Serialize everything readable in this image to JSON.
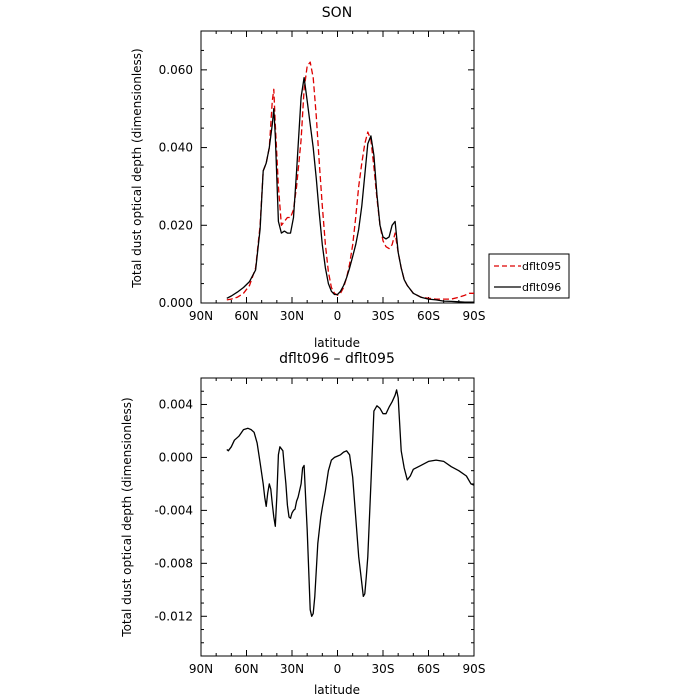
{
  "chart_data": [
    {
      "type": "line",
      "title": "SON",
      "xlabel": "latitude",
      "ylabel": "Total dust optical depth (dimensionless)",
      "xlim": [
        90,
        -90
      ],
      "ylim": [
        0.0,
        0.07
      ],
      "x_ticks": [
        90,
        60,
        30,
        0,
        -30,
        -60,
        -90
      ],
      "x_tick_labels": [
        "90N",
        "60N",
        "30N",
        "0",
        "30S",
        "60S",
        "90S"
      ],
      "y_ticks": [
        0.0,
        0.02,
        0.04,
        0.06
      ],
      "y_tick_labels": [
        "0.000",
        "0.020",
        "0.040",
        "0.060"
      ],
      "legend": "right-outside",
      "series": [
        {
          "name": "dflt095",
          "color": "#dd0000",
          "dash": "dashed",
          "x": [
            73,
            70,
            66,
            62,
            58,
            54,
            51,
            49,
            47,
            45,
            43,
            42,
            41,
            39,
            37,
            35,
            33,
            31,
            29,
            27,
            24,
            22,
            20,
            18,
            16,
            14,
            12,
            10,
            8,
            6,
            4,
            2,
            0,
            -2,
            -4,
            -6,
            -8,
            -10,
            -12,
            -14,
            -16,
            -18,
            -20,
            -22,
            -24,
            -26,
            -28,
            -30,
            -32,
            -34,
            -36,
            -38,
            -40,
            -42,
            -44,
            -46,
            -48,
            -50,
            -55,
            -60,
            -65,
            -70,
            -75,
            -80,
            -84,
            -87,
            -90
          ],
          "y": [
            0.0008,
            0.001,
            0.0015,
            0.0025,
            0.0045,
            0.009,
            0.02,
            0.034,
            0.036,
            0.04,
            0.052,
            0.055,
            0.046,
            0.03,
            0.02,
            0.021,
            0.022,
            0.022,
            0.024,
            0.03,
            0.042,
            0.055,
            0.061,
            0.062,
            0.058,
            0.048,
            0.036,
            0.025,
            0.015,
            0.008,
            0.004,
            0.0025,
            0.002,
            0.0025,
            0.004,
            0.0065,
            0.01,
            0.015,
            0.022,
            0.03,
            0.036,
            0.041,
            0.044,
            0.042,
            0.035,
            0.027,
            0.02,
            0.016,
            0.0145,
            0.014,
            0.015,
            0.018,
            0.013,
            0.009,
            0.006,
            0.0045,
            0.0035,
            0.0025,
            0.0015,
            0.0012,
            0.001,
            0.001,
            0.001,
            0.0015,
            0.002,
            0.0025,
            0.0025
          ]
        },
        {
          "name": "dflt096",
          "color": "#000000",
          "dash": "solid",
          "x": [
            73,
            70,
            66,
            62,
            58,
            54,
            51,
            49,
            47,
            45,
            43,
            42,
            41,
            39,
            37,
            35,
            33,
            31,
            29,
            27,
            24,
            22,
            20,
            18,
            16,
            14,
            12,
            10,
            8,
            6,
            4,
            2,
            0,
            -2,
            -4,
            -6,
            -8,
            -10,
            -12,
            -14,
            -16,
            -18,
            -20,
            -22,
            -24,
            -26,
            -28,
            -30,
            -32,
            -34,
            -36,
            -38,
            -40,
            -42,
            -44,
            -46,
            -48,
            -50,
            -55,
            -60,
            -65,
            -70,
            -75,
            -80,
            -84,
            -87,
            -90
          ],
          "y": [
            0.0012,
            0.0018,
            0.0028,
            0.004,
            0.0055,
            0.0085,
            0.019,
            0.034,
            0.036,
            0.04,
            0.046,
            0.05,
            0.043,
            0.021,
            0.018,
            0.0185,
            0.018,
            0.018,
            0.022,
            0.034,
            0.053,
            0.058,
            0.052,
            0.046,
            0.04,
            0.032,
            0.023,
            0.015,
            0.009,
            0.005,
            0.003,
            0.0022,
            0.0022,
            0.003,
            0.0045,
            0.0065,
            0.009,
            0.012,
            0.015,
            0.019,
            0.025,
            0.033,
            0.041,
            0.043,
            0.038,
            0.028,
            0.02,
            0.017,
            0.0165,
            0.017,
            0.02,
            0.021,
            0.013,
            0.009,
            0.006,
            0.0045,
            0.0035,
            0.0025,
            0.0015,
            0.001,
            0.0008,
            0.0005,
            0.0004,
            0.0003,
            0.0002,
            0.0002,
            0.0002
          ]
        }
      ]
    },
    {
      "type": "line",
      "title": "dflt096 – dflt095",
      "xlabel": "latitude",
      "ylabel": "Total dust optical depth (dimensionless)",
      "xlim": [
        90,
        -90
      ],
      "ylim": [
        -0.015,
        0.006
      ],
      "x_ticks": [
        90,
        60,
        30,
        0,
        -30,
        -60,
        -90
      ],
      "x_tick_labels": [
        "90N",
        "60N",
        "30N",
        "0",
        "30S",
        "60S",
        "90S"
      ],
      "y_ticks": [
        0.004,
        0.0,
        -0.004,
        -0.008,
        -0.012
      ],
      "y_tick_labels": [
        "0.004",
        "0.000",
        "-0.004",
        "-0.008",
        "-0.012"
      ],
      "series": [
        {
          "color": "#000000",
          "dash": "solid",
          "x": [
            73,
            72,
            70,
            68,
            65,
            62,
            59,
            57,
            55,
            53,
            51,
            49,
            48,
            47,
            46,
            45,
            44,
            43,
            42,
            41,
            40,
            39,
            38,
            36,
            35,
            34,
            33,
            32,
            31,
            30,
            29,
            28,
            27,
            26,
            25,
            24,
            23,
            22,
            21,
            20,
            19,
            18,
            17,
            16,
            15,
            14,
            13,
            12,
            11,
            10,
            8,
            6,
            4,
            2,
            0,
            -2,
            -4,
            -6,
            -8,
            -10,
            -12,
            -14,
            -16,
            -17,
            -18,
            -19,
            -20,
            -22,
            -24,
            -26,
            -28,
            -30,
            -32,
            -34,
            -36,
            -38,
            -39,
            -40,
            -41,
            -42,
            -44,
            -46,
            -48,
            -50,
            -55,
            -60,
            -65,
            -70,
            -75,
            -80,
            -85,
            -88,
            -90
          ],
          "y": [
            0.0006,
            0.0005,
            0.0008,
            0.0013,
            0.0016,
            0.0021,
            0.0022,
            0.0021,
            0.0019,
            0.0011,
            -0.0004,
            -0.002,
            -0.003,
            -0.0037,
            -0.0027,
            -0.002,
            -0.0024,
            -0.0035,
            -0.0045,
            -0.0052,
            -0.003,
            0.0002,
            0.0008,
            0.0005,
            -0.0008,
            -0.002,
            -0.0036,
            -0.0045,
            -0.0046,
            -0.0042,
            -0.004,
            -0.0039,
            -0.0033,
            -0.003,
            -0.0025,
            -0.002,
            -0.0008,
            -0.0006,
            -0.003,
            -0.0055,
            -0.0085,
            -0.0115,
            -0.012,
            -0.0118,
            -0.0105,
            -0.0085,
            -0.0065,
            -0.0055,
            -0.0045,
            -0.0038,
            -0.0025,
            -0.001,
            -0.0002,
            0.0,
            0.0001,
            0.0002,
            0.0004,
            0.0005,
            0.0002,
            -0.0015,
            -0.0045,
            -0.0075,
            -0.0095,
            -0.0105,
            -0.0103,
            -0.009,
            -0.0075,
            -0.002,
            0.0035,
            0.0039,
            0.0037,
            0.0033,
            0.0033,
            0.0038,
            0.0042,
            0.0047,
            0.0051,
            0.0045,
            0.0025,
            0.0005,
            -0.0008,
            -0.0017,
            -0.0014,
            -0.0009,
            -0.0006,
            -0.0003,
            -0.0002,
            -0.0003,
            -0.0007,
            -0.001,
            -0.0014,
            -0.002,
            -0.0021
          ]
        }
      ]
    }
  ]
}
